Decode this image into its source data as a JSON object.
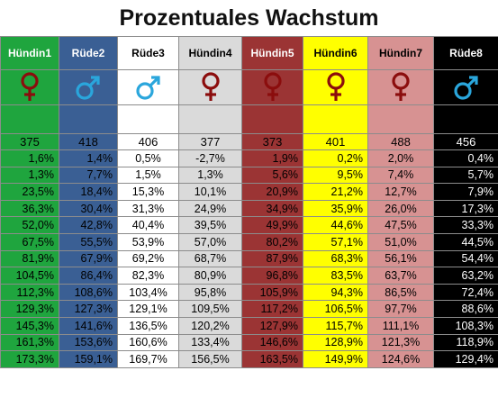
{
  "title": "Prozentuales Wachstum",
  "colors": {
    "col1": "#1fa53e",
    "col2": "#3a5f94",
    "col3": "#ffffff",
    "col4": "#dadada",
    "col5": "#9b3434",
    "col6": "#ffff00",
    "col7": "#d79292",
    "col8": "#000000",
    "female_symbol": "#8b0d0d",
    "male_symbol": "#2aa6dc"
  },
  "columns": [
    {
      "name": "Hündin1",
      "symbol": "female-icon",
      "count": "375"
    },
    {
      "name": "Rüde2",
      "symbol": "male-icon",
      "count": "418"
    },
    {
      "name": "Rüde3",
      "symbol": "male-icon",
      "count": "406"
    },
    {
      "name": "Hündin4",
      "symbol": "female-icon",
      "count": "377"
    },
    {
      "name": "Hündin5",
      "symbol": "female-icon",
      "count": "373"
    },
    {
      "name": "Hündin6",
      "symbol": "female-icon",
      "count": "401"
    },
    {
      "name": "Hündin7",
      "symbol": "female-icon",
      "count": "488"
    },
    {
      "name": "Rüde8",
      "symbol": "male-icon",
      "count": "456"
    }
  ],
  "rows": [
    [
      "1,6%",
      "1,4%",
      "0,5%",
      "-2,7%",
      "1,9%",
      "0,2%",
      "2,0%",
      "0,4%"
    ],
    [
      "1,3%",
      "7,7%",
      "1,5%",
      "1,3%",
      "5,6%",
      "9,5%",
      "7,4%",
      "5,7%"
    ],
    [
      "23,5%",
      "18,4%",
      "15,3%",
      "10,1%",
      "20,9%",
      "21,2%",
      "12,7%",
      "7,9%"
    ],
    [
      "36,3%",
      "30,4%",
      "31,3%",
      "24,9%",
      "34,9%",
      "35,9%",
      "26,0%",
      "17,3%"
    ],
    [
      "52,0%",
      "42,8%",
      "40,4%",
      "39,5%",
      "49,9%",
      "44,6%",
      "47,5%",
      "33,3%"
    ],
    [
      "67,5%",
      "55,5%",
      "53,9%",
      "57,0%",
      "80,2%",
      "57,1%",
      "51,0%",
      "44,5%"
    ],
    [
      "81,9%",
      "67,9%",
      "69,2%",
      "68,7%",
      "87,9%",
      "68,3%",
      "56,1%",
      "54,4%"
    ],
    [
      "104,5%",
      "86,4%",
      "82,3%",
      "80,9%",
      "96,8%",
      "83,5%",
      "63,7%",
      "63,2%"
    ],
    [
      "112,3%",
      "108,6%",
      "103,4%",
      "95,8%",
      "105,9%",
      "94,3%",
      "86,5%",
      "72,4%"
    ],
    [
      "129,3%",
      "127,3%",
      "129,1%",
      "109,5%",
      "117,2%",
      "106,5%",
      "97,7%",
      "88,6%"
    ],
    [
      "145,3%",
      "141,6%",
      "136,5%",
      "120,2%",
      "127,9%",
      "115,7%",
      "111,1%",
      "108,3%"
    ],
    [
      "161,3%",
      "153,6%",
      "160,6%",
      "133,4%",
      "146,6%",
      "128,9%",
      "121,3%",
      "118,9%"
    ],
    [
      "173,3%",
      "159,1%",
      "169,7%",
      "156,5%",
      "163,5%",
      "149,9%",
      "124,6%",
      "129,4%"
    ]
  ]
}
